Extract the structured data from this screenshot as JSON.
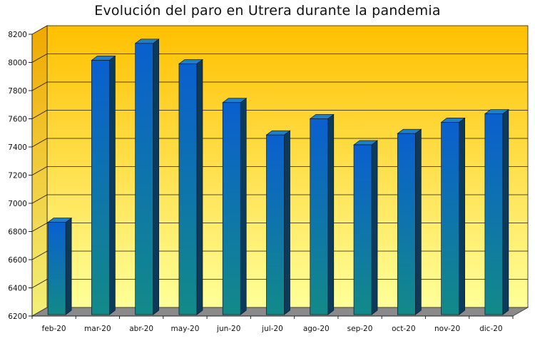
{
  "chart_data": {
    "type": "bar",
    "title": "Evolución del paro en Utrera durante la pandemia",
    "xlabel": "",
    "ylabel": "",
    "categories": [
      "feb-20",
      "mar-20",
      "abr-20",
      "may-20",
      "jun-20",
      "jul-20",
      "ago-20",
      "sep-20",
      "oct-20",
      "nov-20",
      "dic-20"
    ],
    "values": [
      6850,
      8000,
      8120,
      7975,
      7700,
      7470,
      7585,
      7400,
      7480,
      7560,
      7620
    ],
    "ylim": [
      6200,
      8200
    ],
    "yticks": [
      "6200",
      "6400",
      "6600",
      "6800",
      "7000",
      "7200",
      "7400",
      "7600",
      "7800",
      "8000",
      "8200"
    ],
    "grid": true,
    "legend": "none",
    "colors": {
      "bar_top": "#0a5fcf",
      "bar_bottom": "#128a88",
      "bar_side": "#0b3a5a",
      "bar_cap": "#1e7ec8",
      "wall_top": "#ffc000",
      "wall_bottom": "#ffff99",
      "floor": "#8a8a8a"
    }
  }
}
